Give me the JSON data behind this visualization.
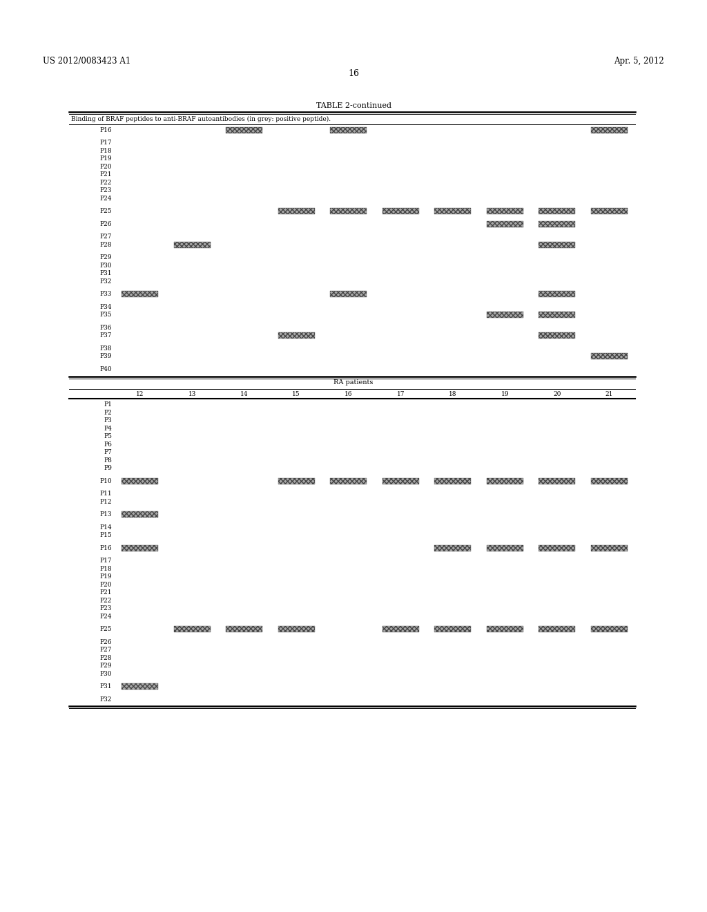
{
  "header_left": "US 2012/0083423 A1",
  "header_right": "Apr. 5, 2012",
  "page_number": "16",
  "table_title": "TABLE 2-continued",
  "table_subtitle": "Binding of BRAF peptides to anti-BRAF autoantibodies (in grey: positive peptide).",
  "section2_label": "RA patients",
  "col_headers": [
    "12",
    "13",
    "14",
    "15",
    "16",
    "17",
    "18",
    "19",
    "20",
    "21"
  ],
  "top_rows": [
    {
      "label": "P16",
      "cols": [
        3,
        5,
        10
      ]
    },
    {
      "label": "P17",
      "cols": []
    },
    {
      "label": "P18",
      "cols": []
    },
    {
      "label": "P19",
      "cols": []
    },
    {
      "label": "P20",
      "cols": []
    },
    {
      "label": "P21",
      "cols": []
    },
    {
      "label": "P22",
      "cols": []
    },
    {
      "label": "P23",
      "cols": []
    },
    {
      "label": "P24",
      "cols": []
    },
    {
      "label": "P25",
      "cols": [
        4,
        5,
        6,
        7,
        8,
        9,
        10
      ]
    },
    {
      "label": "P26",
      "cols": [
        8,
        9
      ]
    },
    {
      "label": "P27",
      "cols": []
    },
    {
      "label": "P28",
      "cols": [
        2,
        9
      ]
    },
    {
      "label": "P29",
      "cols": []
    },
    {
      "label": "P30",
      "cols": []
    },
    {
      "label": "P31",
      "cols": []
    },
    {
      "label": "P32",
      "cols": []
    },
    {
      "label": "P33",
      "cols": [
        1,
        5,
        9
      ]
    },
    {
      "label": "P34",
      "cols": []
    },
    {
      "label": "P35",
      "cols": [
        8,
        9
      ]
    },
    {
      "label": "P36",
      "cols": []
    },
    {
      "label": "P37",
      "cols": [
        4,
        9
      ]
    },
    {
      "label": "P38",
      "cols": []
    },
    {
      "label": "P39",
      "cols": [
        10
      ]
    },
    {
      "label": "P40",
      "cols": []
    }
  ],
  "top_groups": {
    "P16": 0,
    "P17": 1,
    "P18": 1,
    "P19": 1,
    "P20": 1,
    "P21": 1,
    "P22": 1,
    "P23": 1,
    "P24": 1,
    "P25": 2,
    "P26": 3,
    "P27": 4,
    "P28": 4,
    "P29": 5,
    "P30": 5,
    "P31": 5,
    "P32": 5,
    "P33": 6,
    "P34": 7,
    "P35": 7,
    "P36": 8,
    "P37": 8,
    "P38": 9,
    "P39": 9,
    "P40": 10
  },
  "bottom_rows": [
    {
      "label": "P1",
      "cols": []
    },
    {
      "label": "P2",
      "cols": []
    },
    {
      "label": "P3",
      "cols": []
    },
    {
      "label": "P4",
      "cols": []
    },
    {
      "label": "P5",
      "cols": []
    },
    {
      "label": "P6",
      "cols": []
    },
    {
      "label": "P7",
      "cols": []
    },
    {
      "label": "P8",
      "cols": []
    },
    {
      "label": "P9",
      "cols": []
    },
    {
      "label": "P10",
      "cols": [
        1,
        4,
        5,
        6,
        7,
        8,
        9,
        10
      ]
    },
    {
      "label": "P11",
      "cols": []
    },
    {
      "label": "P12",
      "cols": []
    },
    {
      "label": "P13",
      "cols": [
        1
      ]
    },
    {
      "label": "P14",
      "cols": []
    },
    {
      "label": "P15",
      "cols": []
    },
    {
      "label": "P16",
      "cols": [
        1,
        7,
        8,
        9,
        10
      ]
    },
    {
      "label": "P17",
      "cols": []
    },
    {
      "label": "P18",
      "cols": []
    },
    {
      "label": "P19",
      "cols": []
    },
    {
      "label": "P20",
      "cols": []
    },
    {
      "label": "P21",
      "cols": []
    },
    {
      "label": "P22",
      "cols": []
    },
    {
      "label": "P23",
      "cols": []
    },
    {
      "label": "P24",
      "cols": []
    },
    {
      "label": "P25",
      "cols": [
        2,
        3,
        4,
        6,
        7,
        8,
        9,
        10
      ]
    },
    {
      "label": "P26",
      "cols": []
    },
    {
      "label": "P27",
      "cols": []
    },
    {
      "label": "P28",
      "cols": []
    },
    {
      "label": "P29",
      "cols": []
    },
    {
      "label": "P30",
      "cols": []
    },
    {
      "label": "P31",
      "cols": [
        1
      ]
    },
    {
      "label": "P32",
      "cols": []
    }
  ],
  "bottom_groups": {
    "P1": 0,
    "P2": 0,
    "P3": 0,
    "P4": 0,
    "P5": 0,
    "P6": 0,
    "P7": 0,
    "P8": 0,
    "P9": 0,
    "P10": 1,
    "P11": 2,
    "P12": 2,
    "P13": 3,
    "P14": 4,
    "P15": 4,
    "P16": 5,
    "P17": 6,
    "P18": 6,
    "P19": 6,
    "P20": 6,
    "P21": 6,
    "P22": 6,
    "P23": 6,
    "P24": 6,
    "P25": 7,
    "P26": 8,
    "P27": 8,
    "P28": 8,
    "P29": 8,
    "P30": 8,
    "P31": 9,
    "P32": 10
  },
  "bg_color": "#ffffff",
  "cell_color": "#aaaaaa",
  "text_color": "#000000",
  "font_size": 6.5,
  "title_font_size": 8,
  "subtitle_font_size": 6.5
}
